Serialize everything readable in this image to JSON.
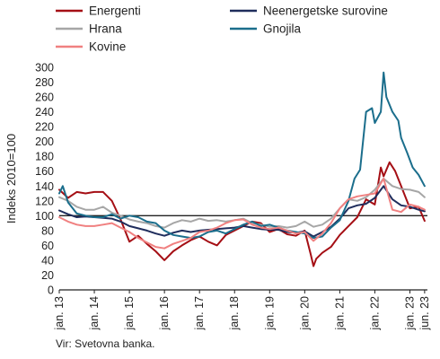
{
  "chart_data": {
    "type": "line",
    "ylabel": "Indeks 2010=100",
    "ylim": [
      0,
      300
    ],
    "yticks": [
      0,
      20,
      40,
      60,
      80,
      100,
      120,
      140,
      160,
      180,
      200,
      220,
      240,
      260,
      280,
      300
    ],
    "reference_line": 100,
    "xlim": [
      2013.0,
      2023.5
    ],
    "xtick_labels": [
      "jan. 13",
      "jan. 14",
      "jan. 15",
      "jan. 16",
      "jan. 17",
      "jan. 18",
      "jan. 19",
      "jan. 20",
      "jan. 21",
      "jan. 22",
      "jan. 23",
      "jun. 23"
    ],
    "xtick_values": [
      2013.0,
      2014.0,
      2015.0,
      2016.0,
      2017.0,
      2018.0,
      2019.0,
      2020.0,
      2021.0,
      2022.0,
      2023.0,
      2023.42
    ],
    "legend_position": "top",
    "series": [
      {
        "name": "Energenti",
        "color": "#a50f15",
        "x": [
          2013.0,
          2013.25,
          2013.5,
          2013.75,
          2014.0,
          2014.25,
          2014.5,
          2014.75,
          2015.0,
          2015.25,
          2015.5,
          2015.75,
          2016.0,
          2016.25,
          2016.5,
          2016.75,
          2017.0,
          2017.25,
          2017.5,
          2017.75,
          2018.0,
          2018.25,
          2018.5,
          2018.75,
          2019.0,
          2019.25,
          2019.5,
          2019.75,
          2020.0,
          2020.17,
          2020.25,
          2020.33,
          2020.5,
          2020.75,
          2021.0,
          2021.25,
          2021.5,
          2021.75,
          2022.0,
          2022.17,
          2022.25,
          2022.42,
          2022.58,
          2022.75,
          2023.0,
          2023.25,
          2023.42
        ],
        "y": [
          135,
          124,
          132,
          130,
          132,
          132,
          120,
          95,
          65,
          73,
          62,
          52,
          40,
          52,
          60,
          67,
          72,
          65,
          60,
          74,
          80,
          86,
          92,
          90,
          78,
          82,
          75,
          73,
          80,
          48,
          32,
          42,
          50,
          58,
          74,
          86,
          98,
          122,
          115,
          165,
          153,
          172,
          160,
          140,
          110,
          112,
          93
        ]
      },
      {
        "name": "Neenergetske surovine",
        "color": "#1f2d5c",
        "x": [
          2013.0,
          2013.25,
          2013.5,
          2013.75,
          2014.0,
          2014.25,
          2014.5,
          2014.75,
          2015.0,
          2015.25,
          2015.5,
          2015.75,
          2016.0,
          2016.25,
          2016.5,
          2016.75,
          2017.0,
          2017.25,
          2017.5,
          2017.75,
          2018.0,
          2018.25,
          2018.5,
          2018.75,
          2019.0,
          2019.25,
          2019.5,
          2019.75,
          2020.0,
          2020.25,
          2020.5,
          2020.75,
          2021.0,
          2021.25,
          2021.5,
          2021.75,
          2022.0,
          2022.25,
          2022.5,
          2022.75,
          2023.0,
          2023.25,
          2023.42
        ],
        "y": [
          107,
          102,
          98,
          99,
          98,
          97,
          96,
          92,
          86,
          83,
          80,
          76,
          73,
          77,
          80,
          78,
          80,
          81,
          82,
          83,
          84,
          86,
          84,
          82,
          81,
          81,
          78,
          77,
          79,
          72,
          78,
          85,
          96,
          110,
          114,
          116,
          124,
          140,
          122,
          114,
          112,
          108,
          106
        ]
      },
      {
        "name": "Hrana",
        "color": "#a6a6a6",
        "x": [
          2013.0,
          2013.25,
          2013.5,
          2013.75,
          2014.0,
          2014.25,
          2014.5,
          2014.75,
          2015.0,
          2015.25,
          2015.5,
          2015.75,
          2016.0,
          2016.25,
          2016.5,
          2016.75,
          2017.0,
          2017.25,
          2017.5,
          2017.75,
          2018.0,
          2018.25,
          2018.5,
          2018.75,
          2019.0,
          2019.25,
          2019.5,
          2019.75,
          2020.0,
          2020.25,
          2020.5,
          2020.75,
          2021.0,
          2021.25,
          2021.5,
          2021.75,
          2022.0,
          2022.25,
          2022.5,
          2022.75,
          2023.0,
          2023.25,
          2023.42
        ],
        "y": [
          125,
          120,
          112,
          108,
          108,
          112,
          104,
          100,
          95,
          92,
          90,
          86,
          84,
          90,
          94,
          92,
          96,
          93,
          94,
          92,
          94,
          96,
          90,
          88,
          85,
          86,
          84,
          86,
          92,
          85,
          88,
          96,
          110,
          122,
          120,
          125,
          135,
          150,
          140,
          136,
          135,
          132,
          125
        ]
      },
      {
        "name": "Gnojila",
        "color": "#1b6e8c",
        "x": [
          2013.0,
          2013.1,
          2013.25,
          2013.5,
          2013.75,
          2014.0,
          2014.25,
          2014.5,
          2014.75,
          2015.0,
          2015.25,
          2015.5,
          2015.75,
          2016.0,
          2016.25,
          2016.5,
          2016.75,
          2017.0,
          2017.25,
          2017.5,
          2017.75,
          2018.0,
          2018.25,
          2018.5,
          2018.75,
          2019.0,
          2019.25,
          2019.5,
          2019.75,
          2020.0,
          2020.25,
          2020.5,
          2020.75,
          2021.0,
          2021.25,
          2021.42,
          2021.58,
          2021.75,
          2021.92,
          2022.0,
          2022.17,
          2022.25,
          2022.33,
          2022.5,
          2022.67,
          2022.75,
          2022.92,
          2023.08,
          2023.25,
          2023.42
        ],
        "y": [
          130,
          140,
          118,
          103,
          100,
          98,
          98,
          102,
          96,
          100,
          98,
          92,
          90,
          80,
          74,
          72,
          70,
          72,
          78,
          80,
          76,
          82,
          88,
          92,
          86,
          88,
          84,
          80,
          78,
          76,
          70,
          72,
          84,
          94,
          120,
          150,
          162,
          240,
          245,
          225,
          240,
          293,
          260,
          240,
          228,
          205,
          185,
          165,
          155,
          140
        ]
      },
      {
        "name": "Kovine",
        "color": "#f08080",
        "x": [
          2013.0,
          2013.25,
          2013.5,
          2013.75,
          2014.0,
          2014.25,
          2014.5,
          2014.75,
          2015.0,
          2015.25,
          2015.5,
          2015.75,
          2016.0,
          2016.25,
          2016.5,
          2016.75,
          2017.0,
          2017.25,
          2017.5,
          2017.75,
          2018.0,
          2018.25,
          2018.5,
          2018.75,
          2019.0,
          2019.25,
          2019.5,
          2019.75,
          2020.0,
          2020.25,
          2020.5,
          2020.75,
          2021.0,
          2021.25,
          2021.5,
          2021.75,
          2022.0,
          2022.25,
          2022.5,
          2022.75,
          2023.0,
          2023.25,
          2023.42
        ],
        "y": [
          98,
          92,
          88,
          86,
          86,
          88,
          90,
          84,
          78,
          70,
          64,
          58,
          56,
          62,
          66,
          70,
          78,
          80,
          84,
          90,
          94,
          95,
          88,
          84,
          82,
          84,
          80,
          76,
          78,
          66,
          76,
          90,
          110,
          122,
          126,
          128,
          130,
          150,
          108,
          105,
          115,
          112,
          108
        ]
      }
    ]
  },
  "source_text": "Vir: Svetovna banka."
}
